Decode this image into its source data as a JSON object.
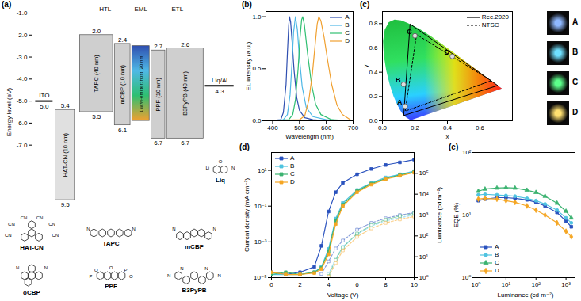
{
  "chart_data": [
    {
      "type": "energy_level",
      "title": "(a)",
      "ylabel": "Energy level (eV)",
      "ylim": [
        -10,
        -1
      ],
      "yticks": [
        {
          "value": -1,
          "label": "-1.0"
        },
        {
          "value": -2,
          "label": "-2.0"
        },
        {
          "value": -3,
          "label": "-3.0"
        },
        {
          "value": -4,
          "label": "-4.0"
        },
        {
          "value": -5,
          "label": "-5.0"
        },
        {
          "value": -6,
          "label": "-6.0"
        },
        {
          "value": -7,
          "label": "-7.0"
        }
      ],
      "electrodes": [
        {
          "name": "ITO",
          "value": -5.0,
          "value_label": "5.0"
        },
        {
          "name": "Liq/Al",
          "value": -4.3,
          "value_label": "4.3"
        }
      ],
      "layers": [
        {
          "name": "HAT-CN (10 nm)",
          "values": [
            -5.4,
            -9.5
          ],
          "value_labels": [
            "5.4",
            "9.5"
          ]
        },
        {
          "name": "TAPC (40 nm)",
          "values": [
            -2.0,
            -5.5
          ],
          "value_labels": [
            "2.0",
            "5.5"
          ]
        },
        {
          "name": "mCBP (10 nm)",
          "values": [
            -2.4,
            -6.1
          ],
          "value_labels": [
            "2.4",
            "6.1"
          ]
        },
        {
          "name": "1 wt%-emitter: host (20 nm)",
          "values": [
            -2.5,
            -5.9
          ]
        },
        {
          "name": "PPF (10 nm)",
          "values": [
            -2.7,
            -6.7
          ],
          "value_labels": [
            "2.7",
            "6.7"
          ]
        },
        {
          "name": "B3PyPB (40 nm)",
          "values": [
            -2.6,
            -6.7
          ],
          "value_labels": [
            "2.6",
            "6.7"
          ]
        }
      ],
      "groups": [
        {
          "label": "HTL",
          "layers": [
            "TAPC (40 nm)",
            "mCBP (10 nm)"
          ]
        },
        {
          "label": "EML",
          "layers": [
            "1 wt%-emitter: host (20 nm)"
          ]
        },
        {
          "label": "ETL",
          "layers": [
            "PPF (10 nm)",
            "B3PyPB (40 nm)"
          ]
        }
      ],
      "molecules": [
        {
          "name": "HAT-CN",
          "atoms": [
            "CN",
            "CN",
            "CN",
            "CN",
            "CN",
            "CN"
          ]
        },
        {
          "name": "TAPC",
          "atoms": [
            "N",
            "N"
          ]
        },
        {
          "name": "mCBP",
          "atoms": [
            "N",
            "N"
          ]
        },
        {
          "name": "Liq",
          "atoms": [
            "Li",
            "O",
            "N"
          ]
        },
        {
          "name": "oCBP",
          "atoms": [
            "N",
            "N"
          ]
        },
        {
          "name": "PPF",
          "atoms": [
            "P",
            "O",
            "O",
            "P",
            "O"
          ]
        },
        {
          "name": "B3PyPB",
          "atoms": [
            "N",
            "N",
            "N",
            "N"
          ]
        }
      ]
    },
    {
      "type": "line",
      "title": "(b)",
      "xlabel": "Wavelength (nm)",
      "ylabel": "EL intensity (a.u.)",
      "xlim": [
        375,
        700
      ],
      "xticks": [
        400,
        500,
        600,
        700
      ],
      "ylim": [
        0,
        1.05
      ],
      "yticks": [
        {
          "value": 0,
          "label": "0.0"
        },
        {
          "value": 0.5,
          "label": "0.5"
        },
        {
          "value": 1,
          "label": "1.0"
        }
      ],
      "legend": "top-right",
      "series": [
        {
          "name": "A",
          "color": "#2f4fb0",
          "x": [
            380,
            430,
            440,
            450,
            455,
            460,
            463,
            467,
            472,
            480,
            490,
            500,
            520,
            550,
            600,
            700
          ],
          "values": [
            0,
            0.01,
            0.08,
            0.35,
            0.65,
            0.92,
            1.0,
            0.95,
            0.78,
            0.48,
            0.22,
            0.1,
            0.03,
            0.01,
            0,
            0
          ]
        },
        {
          "name": "B",
          "color": "#4fb8e6",
          "x": [
            380,
            440,
            455,
            465,
            472,
            478,
            485,
            492,
            500,
            510,
            525,
            550,
            600,
            700
          ],
          "values": [
            0,
            0.01,
            0.06,
            0.25,
            0.55,
            0.85,
            1.0,
            0.88,
            0.6,
            0.33,
            0.13,
            0.04,
            0.01,
            0
          ]
        },
        {
          "name": "C",
          "color": "#2fbf71",
          "x": [
            380,
            460,
            475,
            485,
            495,
            502,
            508,
            512,
            518,
            530,
            545,
            560,
            580,
            620,
            700
          ],
          "values": [
            0,
            0.01,
            0.06,
            0.2,
            0.5,
            0.8,
            0.97,
            1.0,
            0.93,
            0.65,
            0.35,
            0.16,
            0.06,
            0.01,
            0
          ]
        },
        {
          "name": "D",
          "color": "#f0a030",
          "x": [
            380,
            500,
            520,
            535,
            548,
            558,
            566,
            572,
            580,
            592,
            605,
            620,
            640,
            660,
            690,
            700
          ],
          "values": [
            0,
            0.01,
            0.05,
            0.2,
            0.45,
            0.72,
            0.93,
            1.0,
            0.96,
            0.8,
            0.58,
            0.35,
            0.15,
            0.06,
            0.01,
            0
          ]
        }
      ]
    },
    {
      "type": "cie",
      "title": "(c)",
      "xlabel": "x",
      "ylabel": "y",
      "xlim": [
        0,
        0.8
      ],
      "xticks": [
        {
          "value": 0,
          "label": "0.0"
        },
        {
          "value": 0.2,
          "label": "0.2"
        },
        {
          "value": 0.4,
          "label": "0.4"
        },
        {
          "value": 0.6,
          "label": "0.6"
        }
      ],
      "ylim": [
        0,
        0.9
      ],
      "yticks": [
        {
          "value": 0,
          "label": "0.0"
        },
        {
          "value": 0.2,
          "label": "0.2"
        },
        {
          "value": 0.4,
          "label": "0.4"
        },
        {
          "value": 0.6,
          "label": "0.6"
        },
        {
          "value": 0.8,
          "label": "0.8"
        }
      ],
      "legend": "top-right",
      "spectral_locus": {
        "x": [
          0.1741,
          0.144,
          0.1241,
          0.1096,
          0.0913,
          0.0687,
          0.0454,
          0.0235,
          0.0082,
          0.0039,
          0.0139,
          0.0389,
          0.0743,
          0.1142,
          0.1547,
          0.2296,
          0.3016,
          0.3731,
          0.4441,
          0.5125,
          0.5752,
          0.627,
          0.6915,
          0.726,
          0.7347
        ],
        "values": [
          0.005,
          0.0297,
          0.0578,
          0.0868,
          0.1327,
          0.2007,
          0.295,
          0.4127,
          0.5384,
          0.6548,
          0.7502,
          0.812,
          0.8338,
          0.8262,
          0.8059,
          0.7543,
          0.6923,
          0.6245,
          0.5547,
          0.4866,
          0.4242,
          0.3725,
          0.3083,
          0.274,
          0.2653
        ]
      },
      "series": [
        {
          "name": "Rec.2020",
          "color": "#000000",
          "line_style": "solid",
          "x": [
            0.708,
            0.17,
            0.131
          ],
          "values": [
            0.292,
            0.797,
            0.046
          ]
        },
        {
          "name": "NTSC",
          "color": "#000000",
          "line_style": "dashed",
          "x": [
            0.67,
            0.21,
            0.14
          ],
          "values": [
            0.33,
            0.71,
            0.08
          ]
        }
      ],
      "points": {
        "labels": [
          "A",
          "B",
          "C",
          "D"
        ],
        "x": [
          0.14,
          0.13,
          0.2,
          0.43
        ],
        "values": [
          0.12,
          0.3,
          0.7,
          0.53
        ]
      },
      "photos": {
        "labels": [
          "A",
          "B",
          "C",
          "D"
        ],
        "colors": [
          "#8fb8ff",
          "#6fe0ff",
          "#5cff8a",
          "#ffe070"
        ]
      }
    },
    {
      "type": "line",
      "title": "(d)",
      "xlabel": "Voltage (V)",
      "ylabel": "Current density (mA cm⁻²)",
      "y2label": "Luminance (cd m⁻²)",
      "log": "y",
      "xlim": [
        0,
        10
      ],
      "xticks": [
        0,
        2,
        4,
        6,
        8,
        10
      ],
      "ylim": [
        1e-05,
        100
      ],
      "yticks": [
        {
          "value": 1e-05,
          "label": "10⁻⁵"
        },
        {
          "value": 0.001,
          "label": "10⁻³"
        },
        {
          "value": 0.1,
          "label": "10⁻¹"
        },
        {
          "value": 10,
          "label": "10¹"
        }
      ],
      "y2lim": [
        1,
        1000000
      ],
      "y2ticks": [
        {
          "value": 1,
          "label": "10⁰"
        },
        {
          "value": 10,
          "label": "10¹"
        },
        {
          "value": 100,
          "label": "10²"
        },
        {
          "value": 1000,
          "label": "10³"
        },
        {
          "value": 10000,
          "label": "10⁴"
        },
        {
          "value": 100000,
          "label": "10⁵"
        }
      ],
      "legend": "top-left",
      "series": [
        {
          "name": "A",
          "color": "#2a52be",
          "marker": "square",
          "line_style": "solid",
          "x": [
            0,
            1,
            2,
            3,
            3.5,
            4,
            4.5,
            5,
            6,
            7,
            8,
            9,
            10
          ],
          "values": [
            2e-05,
            1.5e-05,
            2e-05,
            4e-05,
            0.0006,
            0.05,
            0.6,
            2,
            6,
            12,
            20,
            28,
            40
          ]
        },
        {
          "name": "B",
          "color": "#4fc3e0",
          "marker": "square",
          "line_style": "solid",
          "x": [
            0,
            1,
            2,
            3,
            3.5,
            4,
            4.5,
            5,
            6,
            7,
            8,
            9,
            10
          ],
          "values": [
            1.5e-05,
            1.5e-05,
            1.5e-05,
            2e-05,
            4e-05,
            0.0004,
            0.02,
            0.15,
            0.8,
            2,
            4,
            6,
            9
          ]
        },
        {
          "name": "C",
          "color": "#3cb371",
          "marker": "square",
          "line_style": "solid",
          "x": [
            0,
            1,
            2,
            3,
            3.5,
            4,
            4.5,
            5,
            6,
            7,
            8,
            9,
            10
          ],
          "values": [
            1.5e-05,
            2e-05,
            1.5e-05,
            2e-05,
            3.5e-05,
            0.0003,
            0.015,
            0.12,
            0.7,
            1.8,
            3.5,
            5.5,
            8
          ]
        },
        {
          "name": "D",
          "color": "#f5a623",
          "marker": "square",
          "line_style": "solid",
          "x": [
            0,
            1,
            2,
            3,
            3.5,
            4,
            4.5,
            5,
            6,
            7,
            8,
            9,
            10
          ],
          "values": [
            2e-05,
            1.5e-05,
            1.5e-05,
            1.8e-05,
            3e-05,
            0.0002,
            0.01,
            0.1,
            0.6,
            1.6,
            3.2,
            5,
            7.5
          ]
        },
        {
          "name": "A",
          "color": "#2a52be",
          "axis": "y2",
          "marker": "open-square",
          "line_style": "dashed",
          "x": [
            3.5,
            4,
            4.5,
            5,
            6,
            7,
            8,
            9,
            10
          ],
          "values": [
            1.5,
            6,
            25,
            60,
            200,
            420,
            700,
            1000,
            1300
          ]
        },
        {
          "name": "B",
          "color": "#4fc3e0",
          "axis": "y2",
          "marker": "open-square",
          "line_style": "dashed",
          "x": [
            4,
            4.5,
            5,
            6,
            7,
            8,
            9,
            10
          ],
          "values": [
            1.5,
            8,
            30,
            120,
            300,
            520,
            750,
            1000
          ]
        },
        {
          "name": "C",
          "color": "#3cb371",
          "axis": "y2",
          "marker": "open-square",
          "line_style": "dashed",
          "x": [
            4,
            4.5,
            5,
            6,
            7,
            8,
            9,
            10
          ],
          "values": [
            1.2,
            7,
            28,
            130,
            330,
            600,
            900,
            1200
          ]
        },
        {
          "name": "D",
          "color": "#f5a623",
          "axis": "y2",
          "marker": "open-square",
          "line_style": "dashed",
          "x": [
            4,
            4.5,
            5,
            6,
            7,
            8,
            9,
            10
          ],
          "values": [
            1.1,
            5,
            20,
            90,
            230,
            420,
            620,
            850
          ]
        }
      ]
    },
    {
      "type": "line",
      "title": "(e)",
      "xlabel": "Luminance (cd m⁻²)",
      "ylabel": "EQE (%)",
      "log": true,
      "xlim": [
        1,
        2000
      ],
      "xticks": [
        {
          "value": 1,
          "label": "10⁰"
        },
        {
          "value": 10,
          "label": "10¹"
        },
        {
          "value": 100,
          "label": "10²"
        },
        {
          "value": 1000,
          "label": "10³"
        }
      ],
      "ylim": [
        1,
        100
      ],
      "yticks": [
        {
          "value": 1,
          "label": "10⁰"
        },
        {
          "value": 10,
          "label": "10¹"
        },
        {
          "value": 100,
          "label": "10²"
        }
      ],
      "legend": "bottom-left",
      "x": [
        1.2,
        2,
        5,
        10,
        20,
        50,
        100,
        200,
        500,
        1000,
        1500
      ],
      "series": [
        {
          "name": "A",
          "color": "#2a52be",
          "marker": "square",
          "line_style": "solid",
          "values": [
            17,
            18,
            19,
            19,
            18.5,
            17.5,
            16,
            14,
            11,
            8,
            6.5
          ]
        },
        {
          "name": "B",
          "color": "#4fc3e0",
          "marker": "circle",
          "line_style": "solid",
          "values": [
            21,
            21.5,
            21,
            20.5,
            20,
            18.5,
            17,
            15,
            12,
            9,
            7.5
          ]
        },
        {
          "name": "C",
          "color": "#3cb371",
          "marker": "triangle",
          "line_style": "solid",
          "values": [
            24,
            26,
            27,
            27.5,
            27,
            25,
            23,
            20,
            15.5,
            11.5,
            9
          ]
        },
        {
          "name": "D",
          "color": "#f5a623",
          "marker": "diamond",
          "line_style": "solid",
          "values": [
            18,
            18.5,
            18,
            17,
            16,
            14,
            12,
            10,
            7.5,
            5.5,
            4.5
          ]
        }
      ]
    }
  ]
}
